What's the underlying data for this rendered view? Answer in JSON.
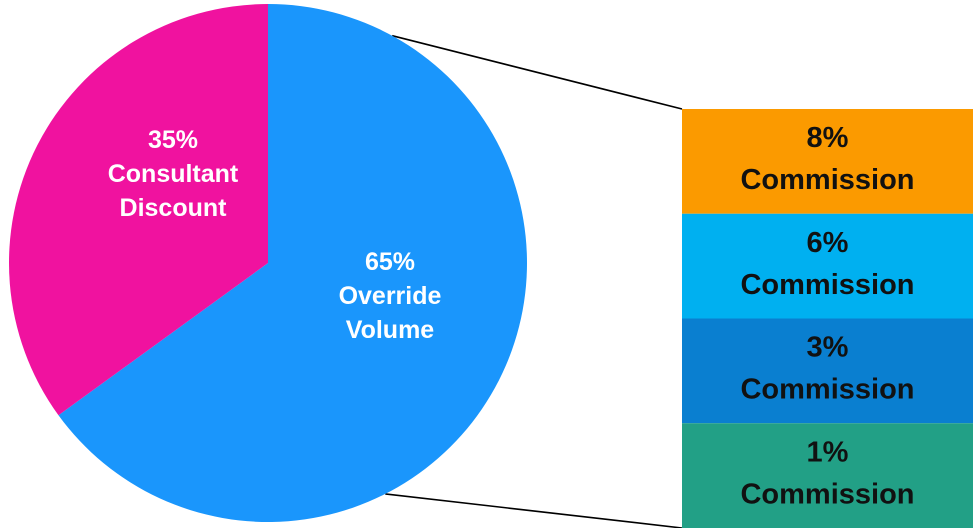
{
  "chart_data": [
    {
      "type": "pie",
      "slices": [
        {
          "pct": "65%",
          "label_lines": [
            "Override",
            "Volume"
          ],
          "value": 65,
          "color": "#1a96fc"
        },
        {
          "pct": "35%",
          "label_lines": [
            "Consultant",
            "Discount"
          ],
          "value": 35,
          "color": "#f0129f"
        }
      ]
    },
    {
      "type": "bar",
      "stacked": true,
      "breakdown_of": "65% Override Volume",
      "segments": [
        {
          "pct": "8%",
          "label": "Commission",
          "value": 8,
          "color": "#fb9a00"
        },
        {
          "pct": "6%",
          "label": "Commission",
          "value": 6,
          "color": "#00b0f0"
        },
        {
          "pct": "3%",
          "label": "Commission",
          "value": 3,
          "color": "#0a7fd0"
        },
        {
          "pct": "1%",
          "label": "Commission",
          "value": 1,
          "color": "#22a086"
        }
      ]
    }
  ]
}
